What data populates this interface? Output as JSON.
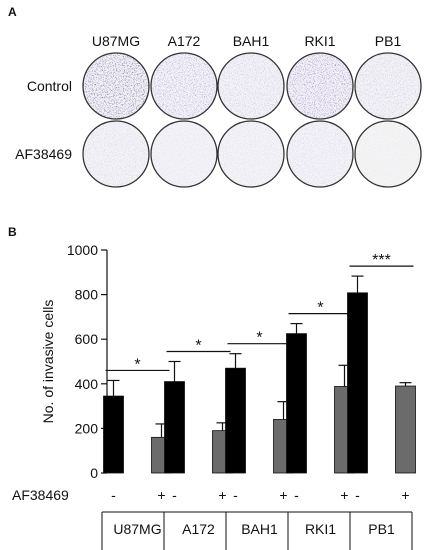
{
  "panel_a": {
    "letter": "A",
    "columns": [
      "U87MG",
      "A172",
      "BAH1",
      "RKI1",
      "PB1"
    ],
    "rows": [
      "Control",
      "AF38469"
    ]
  },
  "panel_b": {
    "letter": "B"
  },
  "chart_data": {
    "type": "bar",
    "categories": [
      "U87MG",
      "A172",
      "BAH1",
      "RKI1",
      "PB1"
    ],
    "series": [
      {
        "name": "",
        "values": [
          345,
          410,
          470,
          625,
          808
        ],
        "errors": [
          70,
          90,
          65,
          45,
          75
        ]
      },
      {
        "name": "",
        "values": [
          160,
          190,
          240,
          388,
          390
        ],
        "errors": [
          60,
          35,
          80,
          95,
          15
        ]
      }
    ],
    "series_signs": [
      "-",
      "+"
    ],
    "series_colors": [
      "#000000",
      "#6b6b6b"
    ],
    "significance": [
      "*",
      "*",
      "*",
      "*",
      "***"
    ],
    "treatment_label": "AF38469",
    "title": "",
    "xlabel": "",
    "ylabel": "No. of invasive cells",
    "ylim": [
      0,
      1000
    ],
    "yticks": [
      0,
      200,
      400,
      600,
      800,
      1000
    ],
    "grid": false,
    "legend": "none"
  },
  "well_colors": {
    "control": [
      "#3c3a74",
      "#9286c6",
      "#b7b0d4",
      "#7a5cb0",
      "#b9b8cc"
    ],
    "treated": [
      "#c9c6d8",
      "#d9d6e6",
      "#d6d3df",
      "#ccc6dc",
      "#e6e6c8"
    ]
  }
}
